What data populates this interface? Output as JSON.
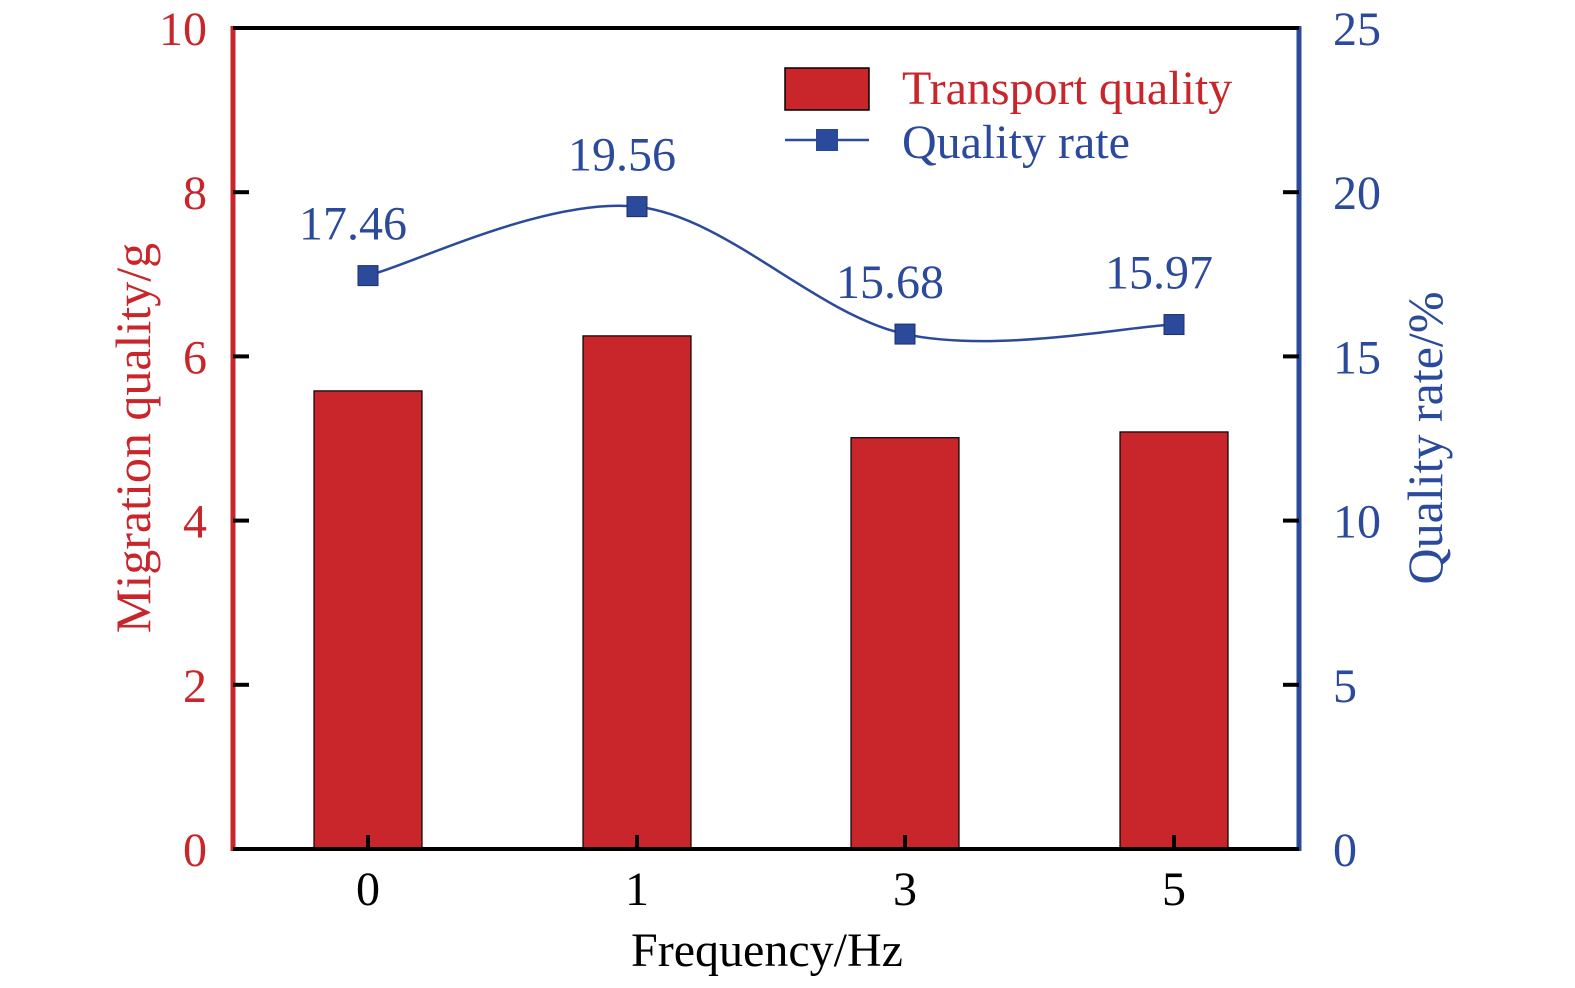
{
  "chart_data": {
    "type": "bar",
    "categories": [
      "0",
      "1",
      "3",
      "5"
    ],
    "xlabel": "Frequency/Hz",
    "ylabel_left": "Migration quality/g",
    "ylabel_right": "Quality rate/%",
    "ylim_left": [
      0,
      10
    ],
    "ylim_right": [
      0,
      25
    ],
    "yticks_left": [
      "0",
      "2",
      "4",
      "6",
      "8",
      "10"
    ],
    "yticks_right": [
      "0",
      "5",
      "10",
      "15",
      "20",
      "25"
    ],
    "grid": false,
    "legend_position": "top-right",
    "series": [
      {
        "name": "Transport quality",
        "type": "bar",
        "axis": "left",
        "color": "#c8262b",
        "values": [
          5.58,
          6.25,
          5.01,
          5.08
        ]
      },
      {
        "name": "Quality rate",
        "type": "line",
        "axis": "right",
        "color": "#2b4a9b",
        "marker": "square",
        "smooth": true,
        "values": [
          17.46,
          19.56,
          15.68,
          15.97
        ],
        "labels": [
          "17.46",
          "19.56",
          "15.68",
          "15.97"
        ]
      }
    ],
    "colors": {
      "left_axis": "#c8262b",
      "right_axis": "#2b4a9b",
      "frame": "#000000"
    }
  }
}
